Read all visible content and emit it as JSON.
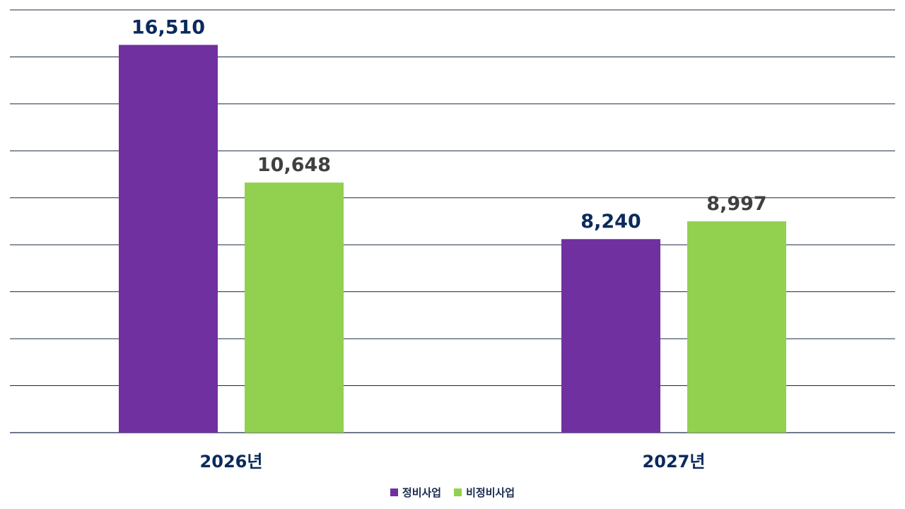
{
  "chart_data": {
    "type": "bar",
    "categories": [
      "2026년",
      "2027년"
    ],
    "series": [
      {
        "name": "정비사업",
        "values": [
          16510,
          8240
        ],
        "color": "#7030a0",
        "label_color": "#0b2a5c"
      },
      {
        "name": "비정비사업",
        "values": [
          10648,
          8997
        ],
        "color": "#92d050",
        "label_color": "#404040"
      }
    ],
    "value_labels": [
      [
        "16,510",
        "8,240"
      ],
      [
        "10,648",
        "8,997"
      ]
    ],
    "ylim": [
      0,
      18000
    ],
    "grid": true,
    "legend_position": "bottom"
  }
}
